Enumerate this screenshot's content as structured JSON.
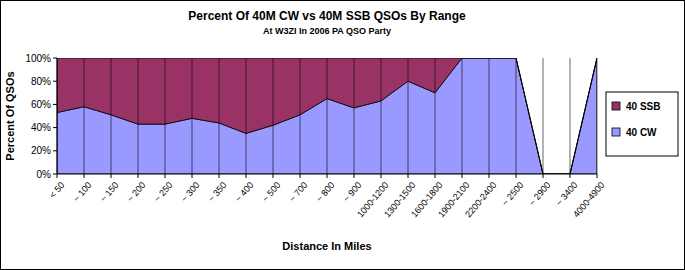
{
  "chart_data": {
    "type": "area",
    "stacked": true,
    "title": "Percent Of 40M CW  vs  40M SSB QSOs By Range",
    "subtitle": "At W3ZI In 2006 PA QSO Party",
    "x_label": "Distance In Miles",
    "y_label": "Percent Of QSOs",
    "categories": [
      "< 50",
      "~ 100",
      "~ 150",
      "~ 200",
      "~ 250",
      "~ 300",
      "~ 350",
      "~ 400",
      "~ 500",
      "~ 700",
      "~ 800",
      "~ 900",
      "1000-1200",
      "1300-1500",
      "1600-1800",
      "1900-2100",
      "2200-2400",
      "~ 2500",
      "~ 2900",
      "~ 3400",
      "4000-4900"
    ],
    "series": [
      {
        "name": "40 CW",
        "color": "#9999ff",
        "values": [
          53,
          58,
          51,
          43,
          43,
          48,
          44,
          35,
          42,
          51,
          65,
          57,
          63,
          80,
          70,
          100,
          100,
          100,
          0,
          0,
          100
        ]
      },
      {
        "name": "40 SSB",
        "color": "#993366",
        "values": [
          47,
          42,
          49,
          57,
          57,
          52,
          56,
          65,
          58,
          49,
          35,
          43,
          37,
          20,
          30,
          0,
          0,
          0,
          0,
          0,
          0
        ]
      }
    ],
    "ylim": [
      0,
      100
    ],
    "yticks": [
      {
        "value": 0,
        "label": "0%"
      },
      {
        "value": 20,
        "label": "20%"
      },
      {
        "value": 40,
        "label": "40%"
      },
      {
        "value": 60,
        "label": "60%"
      },
      {
        "value": 80,
        "label": "80%"
      },
      {
        "value": 100,
        "label": "100%"
      }
    ],
    "legend": "right"
  }
}
